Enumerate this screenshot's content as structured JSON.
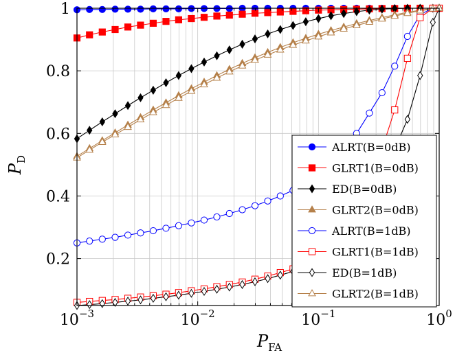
{
  "chart_data": {
    "type": "line",
    "xscale": "log",
    "xlim": [
      0.001,
      1
    ],
    "ylim": [
      0.05,
      1
    ],
    "grid": true,
    "legend_position": "bottom-right",
    "xlabel": {
      "main": "P",
      "sub": "FA"
    },
    "ylabel": {
      "main": "P",
      "sub": "D"
    },
    "x_ticks": [
      {
        "value": 0.001,
        "base": "10",
        "exp": "−3"
      },
      {
        "value": 0.01,
        "base": "10",
        "exp": "−2"
      },
      {
        "value": 0.1,
        "base": "10",
        "exp": "−1"
      },
      {
        "value": 1,
        "base": "10",
        "exp": "0"
      }
    ],
    "y_ticks": [
      {
        "value": 0.2,
        "label": "0.2"
      },
      {
        "value": 0.4,
        "label": "0.4"
      },
      {
        "value": 0.6,
        "label": "0.6"
      },
      {
        "value": 0.8,
        "label": "0.8"
      },
      {
        "value": 1,
        "label": "1"
      }
    ],
    "series": [
      {
        "name": "ALRT(B=0dB)",
        "color": "#0000ff",
        "marker": "circle",
        "filled": true,
        "points": [
          [
            0.001,
            0.995
          ],
          [
            0.00127,
            0.996
          ],
          [
            0.00162,
            0.996
          ],
          [
            0.00207,
            0.997
          ],
          [
            0.00264,
            0.997
          ],
          [
            0.00336,
            0.997
          ],
          [
            0.00428,
            0.998
          ],
          [
            0.00546,
            0.998
          ],
          [
            0.00695,
            0.998
          ],
          [
            0.00886,
            0.999
          ],
          [
            0.0113,
            0.999
          ],
          [
            0.0144,
            0.999
          ],
          [
            0.0183,
            0.999
          ],
          [
            0.0234,
            1
          ],
          [
            0.0298,
            1
          ],
          [
            0.038,
            1
          ],
          [
            0.0483,
            1
          ],
          [
            0.0616,
            1
          ],
          [
            0.0785,
            1
          ],
          [
            0.1,
            1
          ],
          [
            0.127,
            1
          ],
          [
            0.162,
            1
          ],
          [
            0.207,
            1
          ],
          [
            0.264,
            1
          ],
          [
            0.336,
            1
          ],
          [
            0.428,
            1
          ],
          [
            0.546,
            1
          ],
          [
            0.695,
            1
          ],
          [
            0.886,
            1
          ],
          [
            1,
            1
          ]
        ]
      },
      {
        "name": "GLRT1(B=0dB)",
        "color": "#ff0000",
        "marker": "square",
        "filled": true,
        "points": [
          [
            0.001,
            0.905
          ],
          [
            0.00127,
            0.915
          ],
          [
            0.00162,
            0.924
          ],
          [
            0.00207,
            0.932
          ],
          [
            0.00264,
            0.94
          ],
          [
            0.00336,
            0.946
          ],
          [
            0.00428,
            0.952
          ],
          [
            0.00546,
            0.958
          ],
          [
            0.00695,
            0.963
          ],
          [
            0.00886,
            0.967
          ],
          [
            0.0113,
            0.971
          ],
          [
            0.0144,
            0.975
          ],
          [
            0.0183,
            0.978
          ],
          [
            0.0234,
            0.981
          ],
          [
            0.0298,
            0.984
          ],
          [
            0.038,
            0.986
          ],
          [
            0.0483,
            0.988
          ],
          [
            0.0616,
            0.99
          ],
          [
            0.0785,
            0.992
          ],
          [
            0.1,
            0.994
          ],
          [
            0.127,
            0.995
          ],
          [
            0.162,
            0.996
          ],
          [
            0.207,
            0.997
          ],
          [
            0.264,
            0.998
          ],
          [
            0.336,
            0.999
          ],
          [
            0.428,
            0.999
          ],
          [
            0.546,
            1
          ],
          [
            0.695,
            1
          ],
          [
            0.886,
            1
          ],
          [
            1,
            1
          ]
        ]
      },
      {
        "name": "ED(B=0dB)",
        "color": "#000000",
        "marker": "diamond",
        "filled": true,
        "points": [
          [
            0.001,
            0.583
          ],
          [
            0.00127,
            0.61
          ],
          [
            0.00162,
            0.637
          ],
          [
            0.00207,
            0.663
          ],
          [
            0.00264,
            0.689
          ],
          [
            0.00336,
            0.714
          ],
          [
            0.00428,
            0.738
          ],
          [
            0.00546,
            0.762
          ],
          [
            0.00695,
            0.785
          ],
          [
            0.00886,
            0.807
          ],
          [
            0.0113,
            0.828
          ],
          [
            0.0144,
            0.848
          ],
          [
            0.0183,
            0.867
          ],
          [
            0.0234,
            0.885
          ],
          [
            0.0298,
            0.902
          ],
          [
            0.038,
            0.918
          ],
          [
            0.0483,
            0.932
          ],
          [
            0.0616,
            0.945
          ],
          [
            0.0785,
            0.957
          ],
          [
            0.1,
            0.967
          ],
          [
            0.127,
            0.976
          ],
          [
            0.162,
            0.983
          ],
          [
            0.207,
            0.989
          ],
          [
            0.264,
            0.994
          ],
          [
            0.336,
            0.997
          ],
          [
            0.428,
            0.999
          ],
          [
            0.546,
            1
          ],
          [
            0.695,
            1
          ],
          [
            0.886,
            1
          ],
          [
            1,
            1
          ]
        ]
      },
      {
        "name": "GLRT2(B=0dB)",
        "color": "#b5804a",
        "marker": "triangle",
        "filled": true,
        "points": [
          [
            0.001,
            0.527
          ],
          [
            0.00127,
            0.552
          ],
          [
            0.00162,
            0.577
          ],
          [
            0.00207,
            0.602
          ],
          [
            0.00264,
            0.627
          ],
          [
            0.00336,
            0.651
          ],
          [
            0.00428,
            0.675
          ],
          [
            0.00546,
            0.698
          ],
          [
            0.00695,
            0.721
          ],
          [
            0.00886,
            0.743
          ],
          [
            0.0113,
            0.764
          ],
          [
            0.0144,
            0.785
          ],
          [
            0.0183,
            0.805
          ],
          [
            0.0234,
            0.824
          ],
          [
            0.0298,
            0.842
          ],
          [
            0.038,
            0.859
          ],
          [
            0.0483,
            0.875
          ],
          [
            0.0616,
            0.89
          ],
          [
            0.0785,
            0.904
          ],
          [
            0.1,
            0.917
          ],
          [
            0.127,
            0.929
          ],
          [
            0.162,
            0.94
          ],
          [
            0.207,
            0.951
          ],
          [
            0.264,
            0.961
          ],
          [
            0.336,
            0.97
          ],
          [
            0.428,
            0.979
          ],
          [
            0.546,
            0.987
          ],
          [
            0.695,
            0.994
          ],
          [
            0.886,
            0.999
          ],
          [
            1,
            1
          ]
        ]
      },
      {
        "name": "ALRT(B=1dB)",
        "color": "#0000ff",
        "marker": "circle",
        "filled": false,
        "points": [
          [
            0.001,
            0.25
          ],
          [
            0.00127,
            0.256
          ],
          [
            0.00162,
            0.262
          ],
          [
            0.00207,
            0.268
          ],
          [
            0.00264,
            0.275
          ],
          [
            0.00336,
            0.282
          ],
          [
            0.00428,
            0.289
          ],
          [
            0.00546,
            0.297
          ],
          [
            0.00695,
            0.305
          ],
          [
            0.00886,
            0.314
          ],
          [
            0.0113,
            0.323
          ],
          [
            0.0144,
            0.333
          ],
          [
            0.0183,
            0.344
          ],
          [
            0.0234,
            0.356
          ],
          [
            0.0298,
            0.369
          ],
          [
            0.038,
            0.384
          ],
          [
            0.0483,
            0.4
          ],
          [
            0.0616,
            0.418
          ],
          [
            0.0785,
            0.438
          ],
          [
            0.1,
            0.461
          ],
          [
            0.127,
            0.49
          ],
          [
            0.162,
            0.53
          ],
          [
            0.207,
            0.6
          ],
          [
            0.264,
            0.665
          ],
          [
            0.336,
            0.73
          ],
          [
            0.428,
            0.815
          ],
          [
            0.546,
            0.91
          ],
          [
            0.695,
            0.98
          ],
          [
            0.886,
            1
          ],
          [
            1,
            1
          ]
        ]
      },
      {
        "name": "GLRT1(B=1dB)",
        "color": "#ff0000",
        "marker": "square",
        "filled": false,
        "points": [
          [
            0.001,
            0.06
          ],
          [
            0.00127,
            0.063
          ],
          [
            0.00162,
            0.066
          ],
          [
            0.00207,
            0.069
          ],
          [
            0.00264,
            0.073
          ],
          [
            0.00336,
            0.077
          ],
          [
            0.00428,
            0.081
          ],
          [
            0.00546,
            0.086
          ],
          [
            0.00695,
            0.091
          ],
          [
            0.00886,
            0.097
          ],
          [
            0.0113,
            0.103
          ],
          [
            0.0144,
            0.11
          ],
          [
            0.0183,
            0.117
          ],
          [
            0.0234,
            0.125
          ],
          [
            0.0298,
            0.134
          ],
          [
            0.038,
            0.144
          ],
          [
            0.0483,
            0.155
          ],
          [
            0.0616,
            0.167
          ],
          [
            0.0785,
            0.181
          ],
          [
            0.1,
            0.197
          ],
          [
            0.127,
            0.215
          ],
          [
            0.162,
            0.236
          ],
          [
            0.207,
            0.28
          ],
          [
            0.264,
            0.4
          ],
          [
            0.336,
            0.55
          ],
          [
            0.428,
            0.675
          ],
          [
            0.546,
            0.84
          ],
          [
            0.695,
            0.97
          ],
          [
            0.886,
            1
          ],
          [
            1,
            1
          ]
        ]
      },
      {
        "name": "ED(B=1dB)",
        "color": "#000000",
        "marker": "diamond",
        "filled": false,
        "points": [
          [
            0.001,
            0.05
          ],
          [
            0.00127,
            0.053
          ],
          [
            0.00162,
            0.056
          ],
          [
            0.00207,
            0.06
          ],
          [
            0.00264,
            0.064
          ],
          [
            0.00336,
            0.068
          ],
          [
            0.00428,
            0.073
          ],
          [
            0.00546,
            0.078
          ],
          [
            0.00695,
            0.083
          ],
          [
            0.00886,
            0.089
          ],
          [
            0.0113,
            0.095
          ],
          [
            0.0144,
            0.102
          ],
          [
            0.0183,
            0.109
          ],
          [
            0.0234,
            0.117
          ],
          [
            0.0298,
            0.126
          ],
          [
            0.038,
            0.136
          ],
          [
            0.0483,
            0.147
          ],
          [
            0.0616,
            0.159
          ],
          [
            0.0785,
            0.172
          ],
          [
            0.1,
            0.186
          ],
          [
            0.127,
            0.202
          ],
          [
            0.162,
            0.22
          ],
          [
            0.207,
            0.24
          ],
          [
            0.264,
            0.3
          ],
          [
            0.336,
            0.42
          ],
          [
            0.428,
            0.55
          ],
          [
            0.546,
            0.645
          ],
          [
            0.695,
            0.785
          ],
          [
            0.886,
            0.955
          ],
          [
            1,
            1
          ]
        ]
      },
      {
        "name": "GLRT2(B=1dB)",
        "color": "#b5804a",
        "marker": "triangle",
        "filled": false,
        "points": [
          [
            0.001,
            0.522
          ],
          [
            0.00127,
            0.547
          ],
          [
            0.00162,
            0.572
          ],
          [
            0.00207,
            0.596
          ],
          [
            0.00264,
            0.62
          ],
          [
            0.00336,
            0.644
          ],
          [
            0.00428,
            0.667
          ],
          [
            0.00546,
            0.69
          ],
          [
            0.00695,
            0.713
          ],
          [
            0.00886,
            0.735
          ],
          [
            0.0113,
            0.756
          ],
          [
            0.0144,
            0.777
          ],
          [
            0.0183,
            0.797
          ],
          [
            0.0234,
            0.816
          ],
          [
            0.0298,
            0.834
          ],
          [
            0.038,
            0.851
          ],
          [
            0.0483,
            0.867
          ],
          [
            0.0616,
            0.882
          ],
          [
            0.0785,
            0.896
          ],
          [
            0.1,
            0.909
          ],
          [
            0.127,
            0.922
          ],
          [
            0.162,
            0.934
          ],
          [
            0.207,
            0.945
          ],
          [
            0.264,
            0.956
          ],
          [
            0.336,
            0.966
          ],
          [
            0.428,
            0.975
          ],
          [
            0.546,
            0.984
          ],
          [
            0.695,
            0.992
          ],
          [
            0.886,
            0.998
          ],
          [
            1,
            1
          ]
        ]
      }
    ]
  }
}
